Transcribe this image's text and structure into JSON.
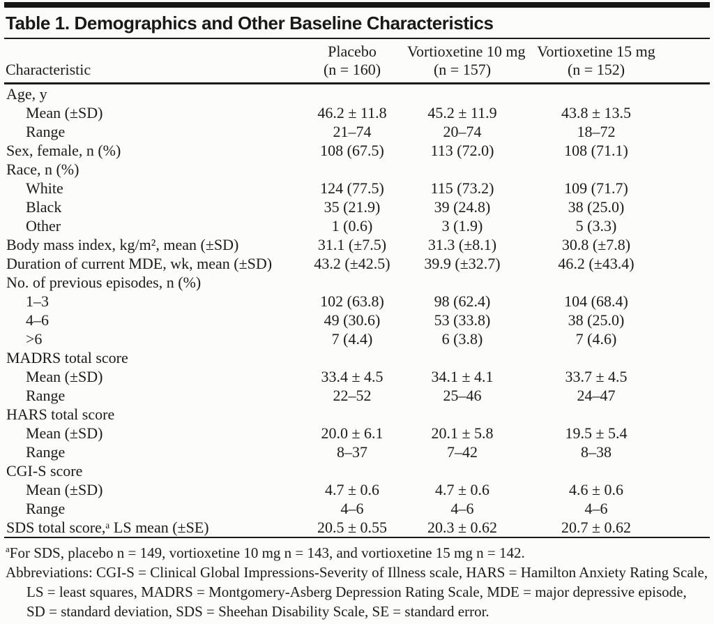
{
  "title": "Table 1. Demographics and Other Baseline Characteristics",
  "table": {
    "columns": [
      {
        "name": "Characteristic",
        "sub": ""
      },
      {
        "name": "Placebo",
        "sub": "(n = 160)"
      },
      {
        "name": "Vortioxetine 10 mg",
        "sub": "(n = 157)"
      },
      {
        "name": "Vortioxetine 15 mg",
        "sub": "(n = 152)"
      }
    ],
    "rows": [
      {
        "label": "Age, y",
        "indent": 0,
        "values": [
          "",
          "",
          ""
        ]
      },
      {
        "label": "Mean (±SD)",
        "indent": 1,
        "values": [
          "46.2 ± 11.8",
          "45.2 ± 11.9",
          "43.8 ± 13.5"
        ]
      },
      {
        "label": "Range",
        "indent": 1,
        "values": [
          "21–74",
          "20–74",
          "18–72"
        ]
      },
      {
        "label": "Sex, female, n (%)",
        "indent": 0,
        "values": [
          "108 (67.5)",
          "113 (72.0)",
          "108 (71.1)"
        ]
      },
      {
        "label": "Race, n (%)",
        "indent": 0,
        "values": [
          "",
          "",
          ""
        ]
      },
      {
        "label": "White",
        "indent": 1,
        "values": [
          "124 (77.5)",
          "115 (73.2)",
          "109 (71.7)"
        ]
      },
      {
        "label": "Black",
        "indent": 1,
        "values": [
          "35 (21.9)",
          "39 (24.8)",
          "38 (25.0)"
        ]
      },
      {
        "label": "Other",
        "indent": 1,
        "values": [
          "1 (0.6)",
          "3 (1.9)",
          "5 (3.3)"
        ]
      },
      {
        "label": "Body mass index, kg/m², mean (±SD)",
        "indent": 0,
        "values": [
          "31.1 (±7.5)",
          "31.3 (±8.1)",
          "30.8 (±7.8)"
        ]
      },
      {
        "label": "Duration of current MDE, wk, mean (±SD)",
        "indent": 0,
        "values": [
          "43.2 (±42.5)",
          "39.9 (±32.7)",
          "46.2 (±43.4)"
        ]
      },
      {
        "label": "No. of previous episodes, n (%)",
        "indent": 0,
        "values": [
          "",
          "",
          ""
        ]
      },
      {
        "label": "1–3",
        "indent": 1,
        "values": [
          "102 (63.8)",
          "98 (62.4)",
          "104 (68.4)"
        ]
      },
      {
        "label": "4–6",
        "indent": 1,
        "values": [
          "49 (30.6)",
          "53 (33.8)",
          "38 (25.0)"
        ]
      },
      {
        "label": ">6",
        "indent": 1,
        "values": [
          "7 (4.4)",
          "6 (3.8)",
          "7 (4.6)"
        ]
      },
      {
        "label": "MADRS total score",
        "indent": 0,
        "values": [
          "",
          "",
          ""
        ]
      },
      {
        "label": "Mean (±SD)",
        "indent": 1,
        "values": [
          "33.4 ± 4.5",
          "34.1 ± 4.1",
          "33.7 ± 4.5"
        ]
      },
      {
        "label": "Range",
        "indent": 1,
        "values": [
          "22–52",
          "25–46",
          "24–47"
        ]
      },
      {
        "label": "HARS total score",
        "indent": 0,
        "values": [
          "",
          "",
          ""
        ]
      },
      {
        "label": "Mean (±SD)",
        "indent": 1,
        "values": [
          "20.0 ± 6.1",
          "20.1 ± 5.8",
          "19.5 ± 5.4"
        ]
      },
      {
        "label": "Range",
        "indent": 1,
        "values": [
          "8–37",
          "7–42",
          "8–38"
        ]
      },
      {
        "label": "CGI-S score",
        "indent": 0,
        "values": [
          "",
          "",
          ""
        ]
      },
      {
        "label": "Mean (±SD)",
        "indent": 1,
        "values": [
          "4.7 ± 0.6",
          "4.7 ± 0.6",
          "4.6 ± 0.6"
        ]
      },
      {
        "label": "Range",
        "indent": 1,
        "values": [
          "4–6",
          "4–6",
          "4–6"
        ]
      },
      {
        "label": "SDS total score,ᵃ LS mean (±SE)",
        "indent": 0,
        "values": [
          "20.5 ± 0.55",
          "20.3 ± 0.62",
          "20.7 ± 0.62"
        ]
      }
    ]
  },
  "footnotes": {
    "note_a_marker": "a",
    "note_a_text": "For SDS, placebo n = 149, vortioxetine 10 mg n = 143, and vortioxetine 15 mg n = 142.",
    "abbreviations": "Abbreviations: CGI-S = Clinical Global Impressions-Severity of Illness scale, HARS = Hamilton Anxiety Rating Scale, LS = least squares, MADRS = Montgomery-Asberg Depression Rating Scale, MDE = major depressive episode, SD = standard deviation, SDS = Sheehan Disability Scale, SE = standard error."
  },
  "colors": {
    "rule": "#1a1a1a",
    "text": "#1b1b1b",
    "background": "#fcfcfa"
  }
}
